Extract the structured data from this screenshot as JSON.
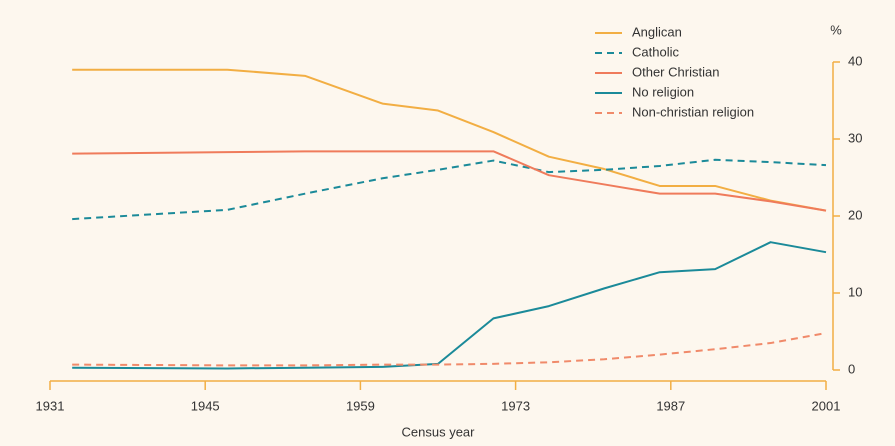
{
  "chart_data": {
    "type": "line",
    "xlabel": "Census year",
    "ylabel": "%",
    "x": [
      1933,
      1947,
      1954,
      1961,
      1966,
      1971,
      1976,
      1981,
      1986,
      1991,
      1996,
      2001
    ],
    "series": [
      {
        "name": "Anglican",
        "color": "#f2ae43",
        "dashed": false,
        "values": [
          39,
          39,
          38.2,
          34.6,
          33.7,
          30.9,
          27.7,
          26.1,
          23.9,
          23.9,
          22,
          20.7
        ]
      },
      {
        "name": "Catholic",
        "color": "#1b8a99",
        "dashed": true,
        "values": [
          19.6,
          20.8,
          22.9,
          24.9,
          26,
          27.2,
          25.7,
          26,
          26.5,
          27.3,
          27,
          26.6
        ]
      },
      {
        "name": "Other Christian",
        "color": "#ef7b5b",
        "dashed": false,
        "values": [
          28.1,
          28.3,
          28.4,
          28.4,
          28.4,
          28.4,
          25.3,
          24.1,
          22.9,
          22.9,
          21.9,
          20.7
        ]
      },
      {
        "name": "No religion",
        "color": "#1b8a99",
        "dashed": false,
        "values": [
          0.3,
          0.2,
          0.3,
          0.4,
          0.8,
          6.7,
          8.3,
          10.6,
          12.7,
          13.1,
          16.6,
          15.3
        ]
      },
      {
        "name": "Non-christian religion",
        "color": "#f08a6a",
        "dashed": true,
        "values": [
          0.7,
          0.6,
          0.6,
          0.7,
          0.7,
          0.8,
          1.0,
          1.4,
          2.0,
          2.7,
          3.5,
          4.8
        ]
      }
    ],
    "xlim": [
      1931,
      2001
    ],
    "xticks": [
      1931,
      1945,
      1959,
      1973,
      1987,
      2001
    ],
    "ylim": [
      0,
      40
    ],
    "yticks": [
      0,
      10,
      20,
      30,
      40
    ],
    "axis_color": "#f2ae43"
  }
}
